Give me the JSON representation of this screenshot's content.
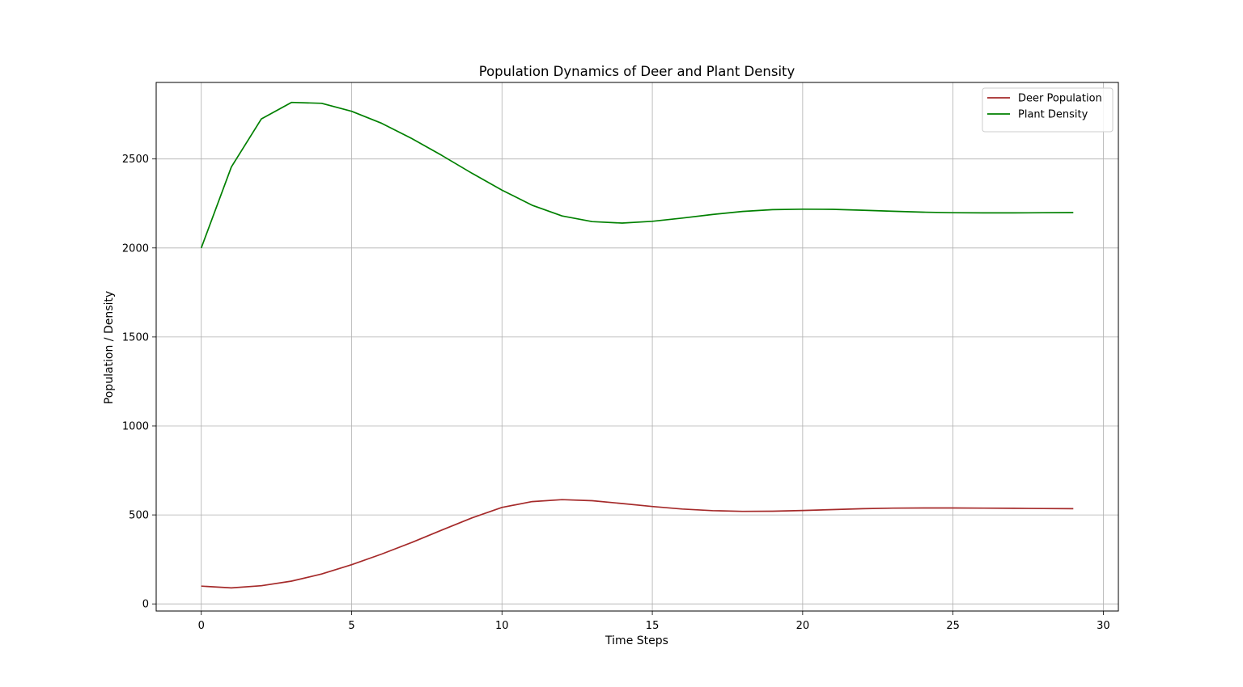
{
  "chart_data": {
    "type": "line",
    "title": "Population Dynamics of Deer and Plant Density",
    "xlabel": "Time Steps",
    "ylabel": "Population / Density",
    "xlim": [
      -1.5,
      30.5
    ],
    "ylim": [
      -40,
      2930
    ],
    "xticks": [
      0,
      5,
      10,
      15,
      20,
      25,
      30
    ],
    "yticks": [
      0,
      500,
      1000,
      1500,
      2000,
      2500
    ],
    "grid": true,
    "legend_position": "upper right",
    "x": [
      0,
      1,
      2,
      3,
      4,
      5,
      6,
      7,
      8,
      9,
      10,
      11,
      12,
      13,
      14,
      15,
      16,
      17,
      18,
      19,
      20,
      21,
      22,
      23,
      24,
      25,
      26,
      27,
      28,
      29
    ],
    "series": [
      {
        "name": "Deer Population",
        "color": "#a52a2a",
        "values": [
          100,
          90,
          102,
          128,
          168,
          220,
          280,
          345,
          415,
          483,
          542,
          575,
          586,
          580,
          564,
          547,
          533,
          524,
          520,
          521,
          525,
          530,
          535,
          538,
          539,
          539,
          538,
          537,
          536,
          535
        ]
      },
      {
        "name": "Plant Density",
        "color": "#008000",
        "values": [
          2000,
          2455,
          2725,
          2818,
          2813,
          2768,
          2700,
          2615,
          2520,
          2420,
          2325,
          2240,
          2180,
          2148,
          2140,
          2150,
          2168,
          2188,
          2205,
          2215,
          2218,
          2217,
          2212,
          2206,
          2201,
          2198,
          2197,
          2197,
          2198,
          2199
        ]
      }
    ]
  }
}
